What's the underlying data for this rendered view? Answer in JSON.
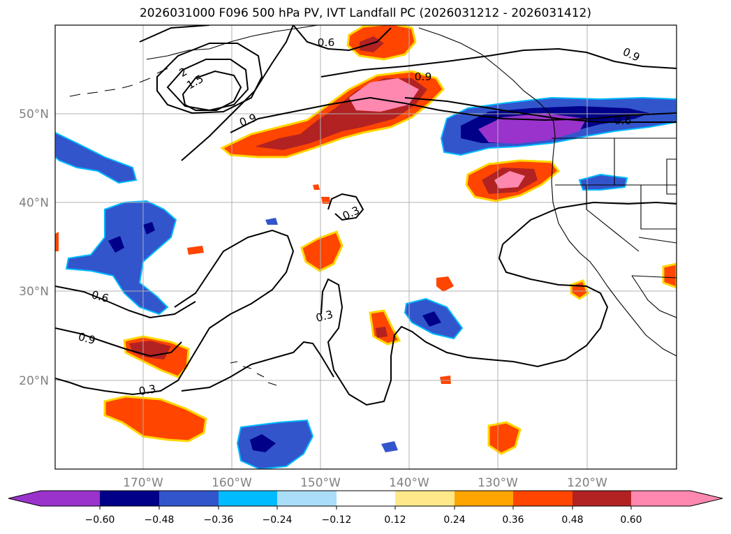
{
  "title": "2026031000 F096 500 hPa PV, IVT Landfall PC (2026031212 - 2026031412)",
  "lon_ticks": [
    "170°W",
    "160°W",
    "150°W",
    "140°W",
    "130°W",
    "120°W"
  ],
  "lat_ticks": [
    "20°N",
    "30°N",
    "40°N",
    "50°N"
  ],
  "contour_labels": [
    "0.6",
    "0.9",
    "1.5",
    "2",
    "0.9",
    "0.3",
    "0.6",
    "0.9",
    "0.3",
    "0.3",
    "0.9",
    "0.6"
  ],
  "colorbar": {
    "labels": [
      "−0.60",
      "−0.48",
      "−0.36",
      "−0.24",
      "−0.12",
      "0.12",
      "0.24",
      "0.36",
      "0.48",
      "0.60"
    ],
    "colors": [
      "#9933cc",
      "#000088",
      "#3355cc",
      "#00bbff",
      "#aaddf7",
      "#ffffff",
      "#ffe88a",
      "#ffa500",
      "#ff4500",
      "#b22222",
      "#ff88b0"
    ]
  },
  "fill_colors": {
    "neg1": "#3355cc",
    "neg2": "#000088",
    "neg3": "#9933cc",
    "negedge": "#00bbff",
    "pos1": "#ff4500",
    "pos2": "#b22222",
    "pos3": "#ff88b0",
    "posedge": "#ffd700"
  }
}
